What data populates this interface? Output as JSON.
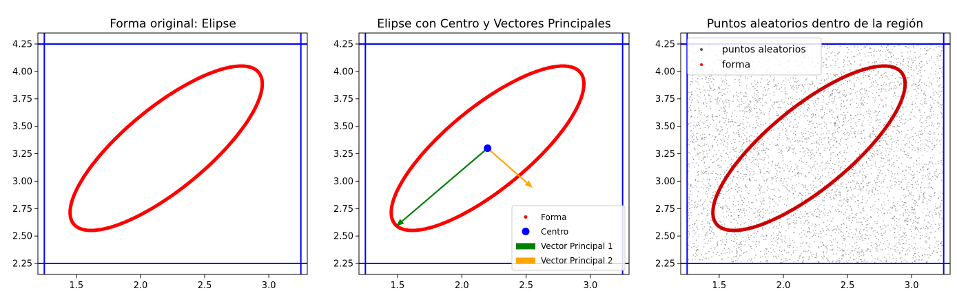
{
  "chart_data": [
    {
      "type": "line",
      "title": "Forma original: Elipse",
      "xlim": [
        1.2,
        3.3
      ],
      "ylim": [
        2.15,
        4.35
      ],
      "xticks": [
        "1.5",
        "2.0",
        "2.5",
        "3.0"
      ],
      "yticks": [
        "2.25",
        "2.50",
        "2.75",
        "3.00",
        "3.25",
        "3.50",
        "3.75",
        "4.00",
        "4.25"
      ],
      "ellipse": {
        "center": [
          2.2,
          3.3
        ],
        "semi_major": 1.0,
        "semi_minor": 0.35,
        "angle_deg": 45,
        "color": "#ff0000"
      },
      "bounding_lines": {
        "x": [
          1.25,
          3.25
        ],
        "y": [
          2.25,
          4.25
        ],
        "color": "#0000ff"
      }
    },
    {
      "type": "line",
      "title": "Elipse con Centro y Vectores Principales",
      "xlim": [
        1.2,
        3.3
      ],
      "ylim": [
        2.15,
        4.35
      ],
      "xticks": [
        "1.5",
        "2.0",
        "2.5",
        "3.0"
      ],
      "yticks": [
        "2.25",
        "2.50",
        "2.75",
        "3.00",
        "3.25",
        "3.50",
        "3.75",
        "4.00",
        "4.25"
      ],
      "ellipse": {
        "center": [
          2.2,
          3.3
        ],
        "semi_major": 1.0,
        "semi_minor": 0.35,
        "angle_deg": 45,
        "color": "#ff0000"
      },
      "bounding_lines": {
        "x": [
          1.25,
          3.25
        ],
        "y": [
          2.25,
          4.25
        ],
        "color": "#0000ff"
      },
      "center_point": {
        "x": 2.2,
        "y": 3.3,
        "color": "#0000ff"
      },
      "vectors": [
        {
          "name": "Vector Principal 1",
          "from": [
            2.2,
            3.3
          ],
          "to": [
            1.49,
            2.59
          ],
          "color": "#008000"
        },
        {
          "name": "Vector Principal 2",
          "from": [
            2.2,
            3.3
          ],
          "to": [
            2.55,
            2.94
          ],
          "color": "#ffa500"
        }
      ],
      "legend": {
        "placement": "lower-right",
        "entries": [
          {
            "label": "Forma",
            "kind": "dot",
            "color": "#ff0000"
          },
          {
            "label": "Centro",
            "kind": "circle",
            "color": "#0000ff"
          },
          {
            "label": "Vector Principal 1",
            "kind": "bar",
            "color": "#008000"
          },
          {
            "label": "Vector Principal 2",
            "kind": "bar",
            "color": "#ffa500"
          }
        ]
      }
    },
    {
      "type": "scatter",
      "title": "Puntos aleatorios dentro de la región",
      "xlim": [
        1.2,
        3.3
      ],
      "ylim": [
        2.15,
        4.35
      ],
      "xticks": [
        "1.5",
        "2.0",
        "2.5",
        "3.0"
      ],
      "yticks": [
        "2.25",
        "2.50",
        "2.75",
        "3.00",
        "3.25",
        "3.50",
        "3.75",
        "4.00",
        "4.25"
      ],
      "ellipse": {
        "center": [
          2.2,
          3.3
        ],
        "semi_major": 1.0,
        "semi_minor": 0.35,
        "angle_deg": 45,
        "color": "#cc0000"
      },
      "bounding_lines": {
        "x": [
          1.25,
          3.25
        ],
        "y": [
          2.25,
          4.25
        ],
        "color": "#0000ff"
      },
      "random_points": {
        "x_range": [
          1.25,
          3.25
        ],
        "y_range": [
          2.25,
          4.25
        ],
        "count": 5000,
        "color": "#555555"
      },
      "legend": {
        "placement": "upper-left",
        "entries": [
          {
            "label": "puntos aleatorios",
            "kind": "dot",
            "color": "#555555"
          },
          {
            "label": "forma",
            "kind": "dot",
            "color": "#ff0000"
          }
        ]
      }
    }
  ]
}
